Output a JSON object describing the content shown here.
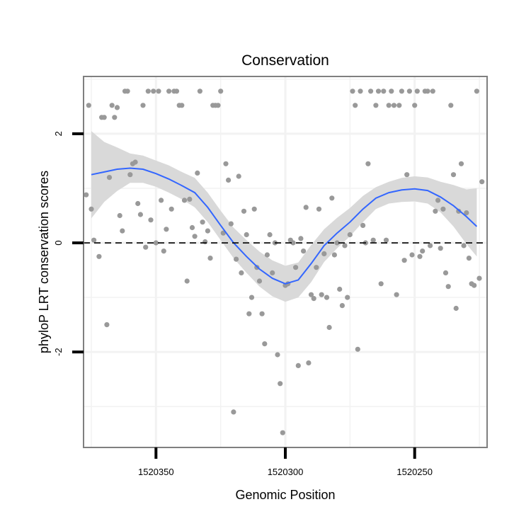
{
  "chart_data": {
    "type": "scatter",
    "title": "Conservation",
    "xlabel": "Genomic Position",
    "ylabel": "phyloP LRT conservation scores",
    "x_reversed": true,
    "xlim": [
      1520378,
      1520222
    ],
    "ylim": [
      -3.75,
      3.05
    ],
    "x_ticks": [
      1520350,
      1520300,
      1520250
    ],
    "x_tick_labels": [
      "1520350",
      "1520300",
      "1520250"
    ],
    "y_ticks": [
      -2,
      0,
      2
    ],
    "y_tick_labels": [
      "-2",
      "0",
      "2"
    ],
    "reference_line": {
      "y": 0,
      "style": "dashed"
    },
    "grid": true,
    "colors": {
      "points": "#999999",
      "smooth": "#3366ff",
      "ribbon": "#d9d9d9",
      "panel_border": "#7f7f7f",
      "grid": "#f2f2f2"
    },
    "series": [
      {
        "name": "scores",
        "points": [
          [
            1520377,
            0.88
          ],
          [
            1520376,
            2.52
          ],
          [
            1520375,
            0.62
          ],
          [
            1520374,
            0.05
          ],
          [
            1520372,
            -0.25
          ],
          [
            1520371,
            2.3
          ],
          [
            1520370,
            2.3
          ],
          [
            1520369,
            -1.5
          ],
          [
            1520368,
            1.2
          ],
          [
            1520367,
            2.52
          ],
          [
            1520366,
            2.3
          ],
          [
            1520365,
            2.48
          ],
          [
            1520364,
            0.5
          ],
          [
            1520363,
            0.22
          ],
          [
            1520362,
            2.78
          ],
          [
            1520361,
            2.78
          ],
          [
            1520360,
            1.25
          ],
          [
            1520359,
            1.45
          ],
          [
            1520358,
            1.48
          ],
          [
            1520357,
            0.72
          ],
          [
            1520356,
            0.52
          ],
          [
            1520355,
            2.52
          ],
          [
            1520354,
            -0.08
          ],
          [
            1520353,
            2.78
          ],
          [
            1520352,
            0.42
          ],
          [
            1520351,
            2.78
          ],
          [
            1520350,
            0.0
          ],
          [
            1520349,
            2.78
          ],
          [
            1520348,
            0.78
          ],
          [
            1520347,
            -0.15
          ],
          [
            1520346,
            0.25
          ],
          [
            1520345,
            2.78
          ],
          [
            1520344,
            0.62
          ],
          [
            1520343,
            2.78
          ],
          [
            1520342,
            2.78
          ],
          [
            1520341,
            2.52
          ],
          [
            1520340,
            2.52
          ],
          [
            1520339,
            0.78
          ],
          [
            1520338,
            -0.7
          ],
          [
            1520337,
            0.8
          ],
          [
            1520336,
            0.28
          ],
          [
            1520335,
            0.12
          ],
          [
            1520334,
            1.28
          ],
          [
            1520333,
            2.78
          ],
          [
            1520332,
            0.38
          ],
          [
            1520331,
            0.02
          ],
          [
            1520330,
            0.22
          ],
          [
            1520329,
            -0.28
          ],
          [
            1520328,
            2.52
          ],
          [
            1520327,
            2.52
          ],
          [
            1520326,
            2.52
          ],
          [
            1520325,
            2.78
          ],
          [
            1520324,
            0.18
          ],
          [
            1520323,
            1.45
          ],
          [
            1520322,
            1.15
          ],
          [
            1520321,
            0.35
          ],
          [
            1520320,
            -3.1
          ],
          [
            1520319,
            -0.3
          ],
          [
            1520318,
            1.22
          ],
          [
            1520317,
            -0.55
          ],
          [
            1520316,
            0.58
          ],
          [
            1520315,
            0.15
          ],
          [
            1520314,
            -1.3
          ],
          [
            1520313,
            -1.0
          ],
          [
            1520312,
            0.62
          ],
          [
            1520311,
            -0.45
          ],
          [
            1520310,
            -0.7
          ],
          [
            1520309,
            -1.3
          ],
          [
            1520308,
            -1.85
          ],
          [
            1520307,
            -0.22
          ],
          [
            1520306,
            0.15
          ],
          [
            1520305,
            -0.55
          ],
          [
            1520304,
            0.0
          ],
          [
            1520303,
            -2.05
          ],
          [
            1520302,
            -2.58
          ],
          [
            1520301,
            -3.48
          ],
          [
            1520300,
            -0.78
          ],
          [
            1520299,
            -0.75
          ],
          [
            1520298,
            0.05
          ],
          [
            1520297,
            0.0
          ],
          [
            1520296,
            -0.45
          ],
          [
            1520295,
            -2.25
          ],
          [
            1520294,
            0.08
          ],
          [
            1520293,
            -0.15
          ],
          [
            1520292,
            0.65
          ],
          [
            1520291,
            -2.2
          ],
          [
            1520290,
            -0.95
          ],
          [
            1520289,
            -1.02
          ],
          [
            1520288,
            -0.45
          ],
          [
            1520287,
            0.62
          ],
          [
            1520286,
            -0.95
          ],
          [
            1520285,
            -0.2
          ],
          [
            1520284,
            -1.0
          ],
          [
            1520283,
            -1.55
          ],
          [
            1520282,
            0.82
          ],
          [
            1520281,
            -0.22
          ],
          [
            1520280,
            0.0
          ],
          [
            1520279,
            -0.85
          ],
          [
            1520278,
            -1.15
          ],
          [
            1520277,
            -0.05
          ],
          [
            1520276,
            -1.0
          ],
          [
            1520275,
            0.15
          ],
          [
            1520274,
            2.78
          ],
          [
            1520273,
            2.52
          ],
          [
            1520272,
            -1.95
          ],
          [
            1520271,
            2.78
          ],
          [
            1520270,
            0.32
          ],
          [
            1520269,
            0.0
          ],
          [
            1520268,
            1.45
          ],
          [
            1520267,
            2.78
          ],
          [
            1520266,
            0.05
          ],
          [
            1520265,
            2.52
          ],
          [
            1520264,
            2.78
          ],
          [
            1520263,
            -0.75
          ],
          [
            1520262,
            2.78
          ],
          [
            1520261,
            0.05
          ],
          [
            1520260,
            2.52
          ],
          [
            1520259,
            2.78
          ],
          [
            1520258,
            2.52
          ],
          [
            1520257,
            -0.95
          ],
          [
            1520256,
            2.52
          ],
          [
            1520255,
            2.78
          ],
          [
            1520254,
            -0.32
          ],
          [
            1520253,
            1.25
          ],
          [
            1520252,
            2.78
          ],
          [
            1520251,
            -0.22
          ],
          [
            1520250,
            2.52
          ],
          [
            1520249,
            2.78
          ],
          [
            1520248,
            -0.25
          ],
          [
            1520247,
            -0.15
          ],
          [
            1520246,
            2.78
          ],
          [
            1520245,
            2.78
          ],
          [
            1520244,
            -0.05
          ],
          [
            1520243,
            2.78
          ],
          [
            1520242,
            0.58
          ],
          [
            1520241,
            0.78
          ],
          [
            1520240,
            -0.1
          ],
          [
            1520239,
            0.62
          ],
          [
            1520238,
            -0.55
          ],
          [
            1520237,
            -0.8
          ],
          [
            1520236,
            2.52
          ],
          [
            1520235,
            1.25
          ],
          [
            1520234,
            -1.2
          ],
          [
            1520233,
            0.58
          ],
          [
            1520232,
            1.45
          ],
          [
            1520231,
            -0.05
          ],
          [
            1520230,
            0.55
          ],
          [
            1520229,
            -0.28
          ],
          [
            1520228,
            -0.75
          ],
          [
            1520227,
            -0.78
          ],
          [
            1520226,
            2.78
          ],
          [
            1520225,
            -0.65
          ],
          [
            1520224,
            1.12
          ]
        ]
      },
      {
        "name": "smooth",
        "x": [
          1520375,
          1520370,
          1520365,
          1520360,
          1520355,
          1520350,
          1520345,
          1520340,
          1520335,
          1520330,
          1520325,
          1520320,
          1520315,
          1520310,
          1520305,
          1520300,
          1520295,
          1520290,
          1520285,
          1520280,
          1520275,
          1520270,
          1520265,
          1520260,
          1520255,
          1520250,
          1520245,
          1520240,
          1520235,
          1520230,
          1520226
        ],
        "y": [
          1.25,
          1.3,
          1.35,
          1.37,
          1.35,
          1.27,
          1.17,
          1.05,
          0.92,
          0.65,
          0.32,
          0.0,
          -0.25,
          -0.48,
          -0.65,
          -0.75,
          -0.68,
          -0.38,
          -0.05,
          0.18,
          0.38,
          0.62,
          0.82,
          0.92,
          0.97,
          0.99,
          0.96,
          0.84,
          0.68,
          0.48,
          0.3
        ],
        "lower": [
          0.45,
          0.75,
          0.95,
          1.1,
          1.1,
          1.03,
          0.92,
          0.8,
          0.65,
          0.38,
          0.05,
          -0.28,
          -0.55,
          -0.8,
          -0.98,
          -1.08,
          -1.0,
          -0.72,
          -0.35,
          -0.1,
          0.12,
          0.38,
          0.62,
          0.72,
          0.75,
          0.76,
          0.72,
          0.56,
          0.3,
          -0.02,
          -0.25
        ],
        "upper": [
          2.05,
          1.85,
          1.75,
          1.64,
          1.6,
          1.51,
          1.42,
          1.3,
          1.19,
          0.92,
          0.59,
          0.28,
          0.05,
          -0.16,
          -0.32,
          -0.42,
          -0.36,
          -0.04,
          0.25,
          0.46,
          0.64,
          0.86,
          1.02,
          1.12,
          1.19,
          1.22,
          1.2,
          1.12,
          1.06,
          0.98,
          1.0
        ]
      }
    ]
  }
}
